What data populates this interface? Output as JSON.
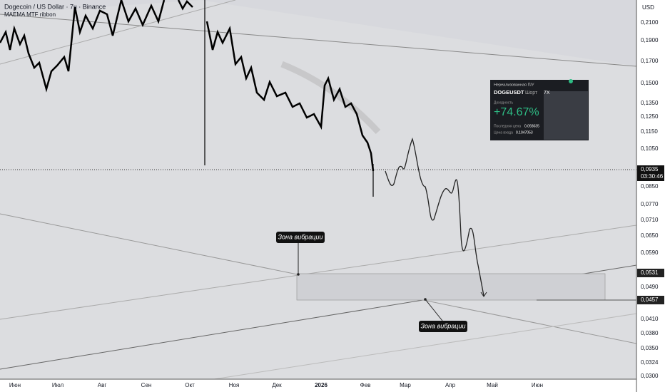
{
  "header": {
    "title": "Dogecoin / US Dollar · 7ч · Binance",
    "indicator": "MAEMA MTF ribbon",
    "currency": "USD"
  },
  "price_axis": {
    "labels": [
      "0,2100",
      "0,1900",
      "0,1700",
      "0,1500",
      "0,1350",
      "0,1250",
      "0,1150",
      "0,1050",
      "0,0850",
      "0,0770",
      "0,0710",
      "0,0650",
      "0,0590",
      "0,0490",
      "0,0410",
      "0,0380",
      "0,0350",
      "0,0324",
      "0,0300"
    ],
    "highlighted": [
      "0,0531",
      "0,0457"
    ],
    "current": {
      "price": "0,0935",
      "countdown": "03:30:46"
    }
  },
  "time_axis": {
    "labels": [
      "Июн",
      "Июл",
      "Авг",
      "Сен",
      "Окт",
      "Ноя",
      "Дек",
      "2026",
      "Фев",
      "Мар",
      "Апр",
      "Май",
      "Июн"
    ]
  },
  "annotations": [
    "Зона вибрации",
    "Зона вибрации"
  ],
  "position_card": {
    "title": "Нереализованная П/У",
    "symbol": "DOGEUSDT",
    "side": "Шорт",
    "leverage": "7X",
    "return_label": "Доходность",
    "return": "+74.67%",
    "last_price_label": "Последняя цена",
    "last_price": "0.093035",
    "entry_label": "Цена входа",
    "entry_price": "0.1047053"
  }
}
